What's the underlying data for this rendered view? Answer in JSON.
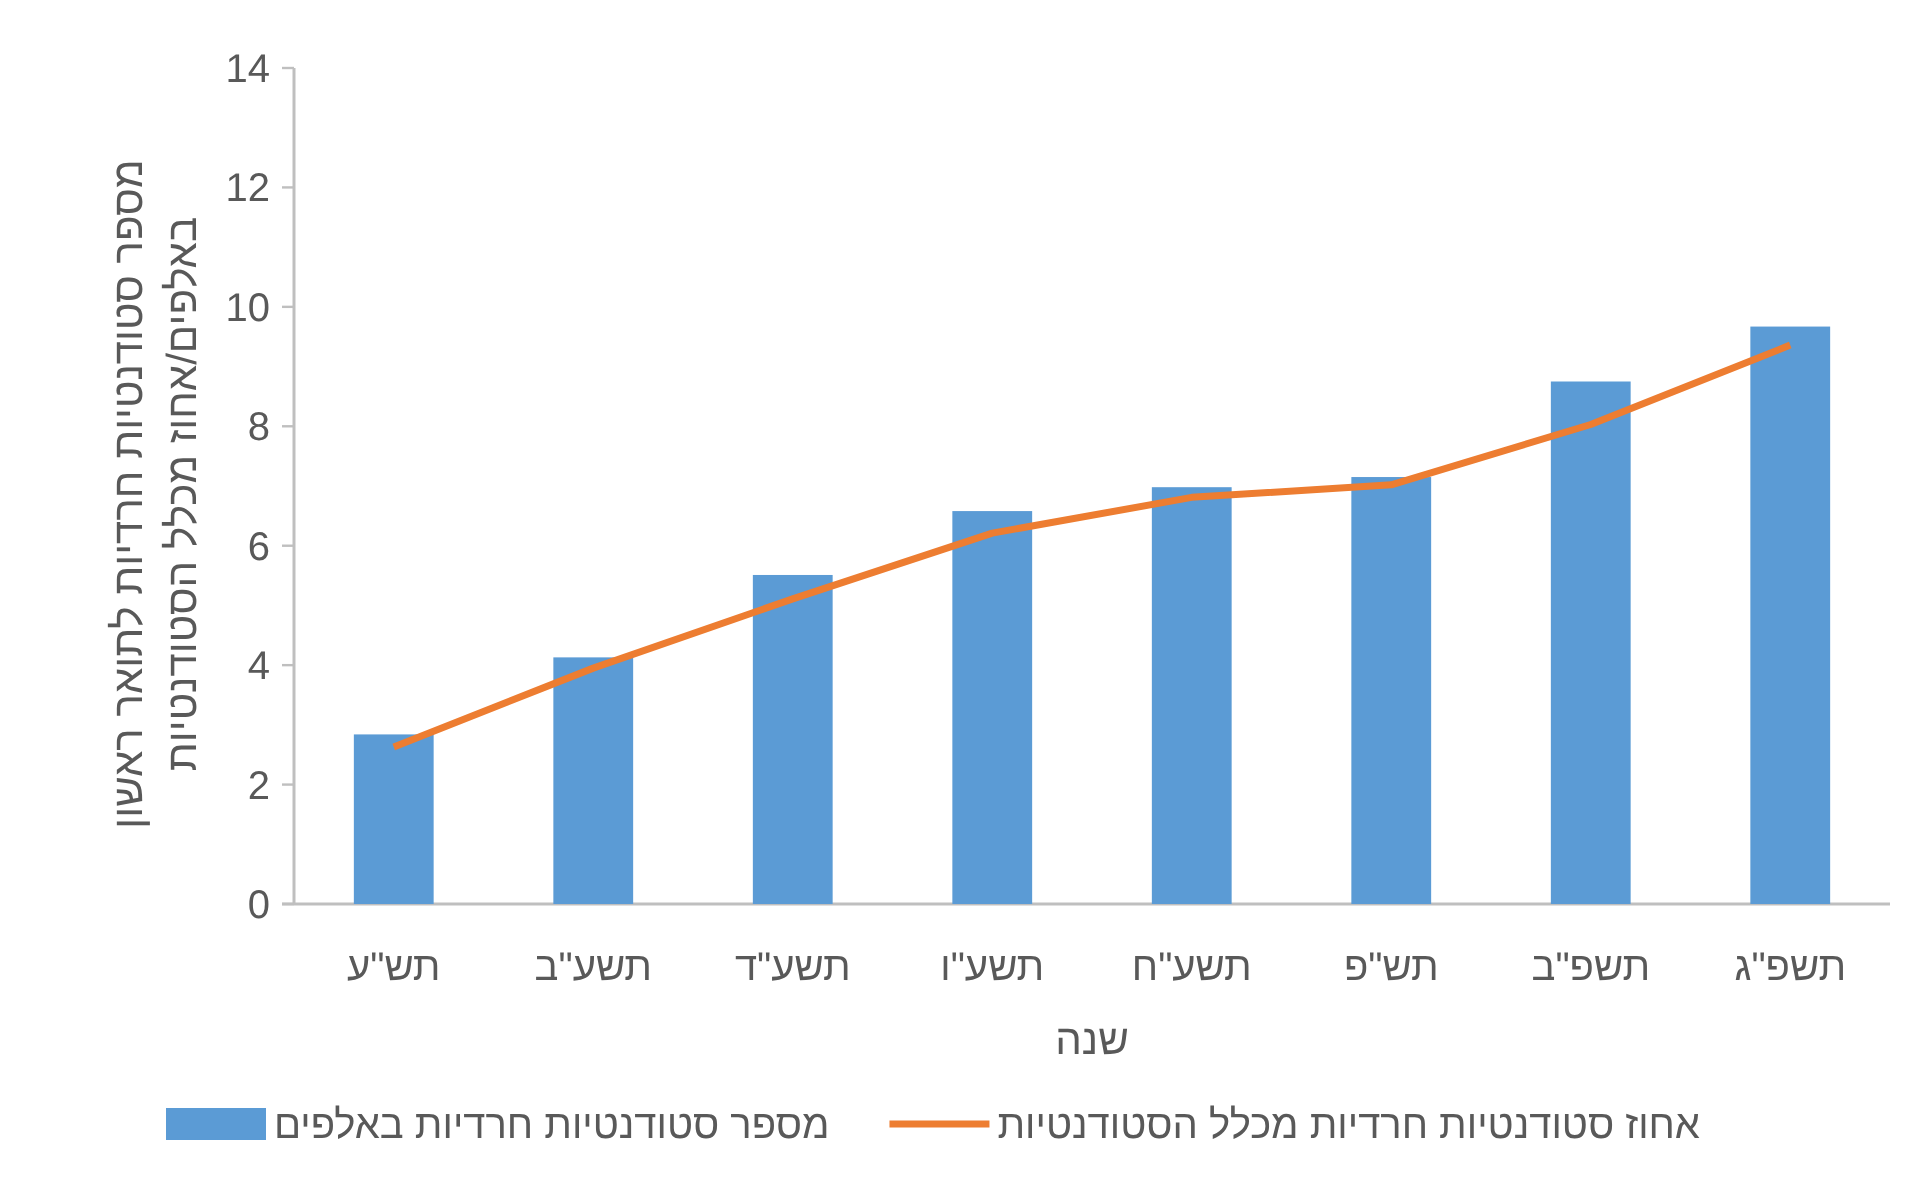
{
  "chart_data": {
    "type": "bar",
    "categories": [
      "תש\"ע",
      "תשע\"ב",
      "תשע\"ד",
      "תשע\"ו",
      "תשע\"ח",
      "תש\"פ",
      "תשפ\"ב",
      "תשפ\"ג"
    ],
    "xlabel": "שנה",
    "ylabel": "מספר סטודנטיות חרדיות לתואר ראשון באלפים/אחוז מכלל הסטודנטיות",
    "ylim": [
      0,
      14
    ],
    "yticks": [
      0,
      2,
      4,
      6,
      8,
      10,
      12,
      14
    ],
    "legend": "bottom",
    "series": [
      {
        "name": "מספר סטודנטיות חרדיות באלפים",
        "color": "#5b9bd5",
        "values": [
          2.84,
          4.13,
          5.51,
          6.58,
          6.98,
          7.15,
          8.75,
          9.67
        ]
      },
      {
        "name": "אחוז סטודנטיות חרדיות מכלל הסטודנטיות",
        "type": "line",
        "color": "#ed7d31",
        "values": [
          2.63,
          3.95,
          5.11,
          6.21,
          6.81,
          7.02,
          8.03,
          9.36
        ]
      }
    ]
  }
}
